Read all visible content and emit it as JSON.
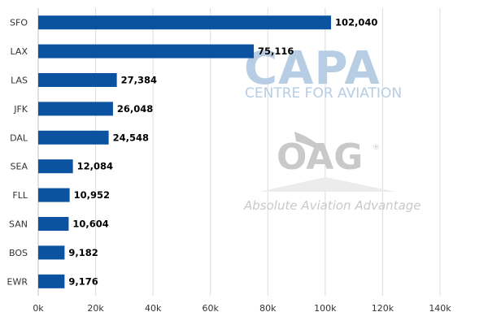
{
  "chart_data": {
    "type": "bar",
    "orientation": "horizontal",
    "categories": [
      "SFO",
      "LAX",
      "LAS",
      "JFK",
      "DAL",
      "SEA",
      "FLL",
      "SAN",
      "BOS",
      "EWR"
    ],
    "values": [
      102040,
      75116,
      27384,
      26048,
      24548,
      12084,
      10952,
      10604,
      9182,
      9176
    ],
    "value_labels": [
      "102,040",
      "75,116",
      "27,384",
      "26,048",
      "24,548",
      "12,084",
      "10,952",
      "10,604",
      "9,182",
      "9,176"
    ],
    "x_ticks": [
      "0k",
      "20k",
      "40k",
      "60k",
      "80k",
      "100k",
      "120k",
      "140k"
    ],
    "xlim": [
      0,
      140000
    ],
    "title": "",
    "xlabel": "",
    "ylabel": "",
    "grid": "vertical",
    "bar_color": "#0b52a1"
  },
  "watermarks": {
    "capa": {
      "title": "CAPA",
      "subtitle": "CENTRE FOR AVIATION",
      "color": "#b7cde4"
    },
    "oag": {
      "title": "OAG",
      "registered": "®",
      "tagline": "Absolute Aviation Advantage",
      "color": "#c9c9c9"
    }
  }
}
